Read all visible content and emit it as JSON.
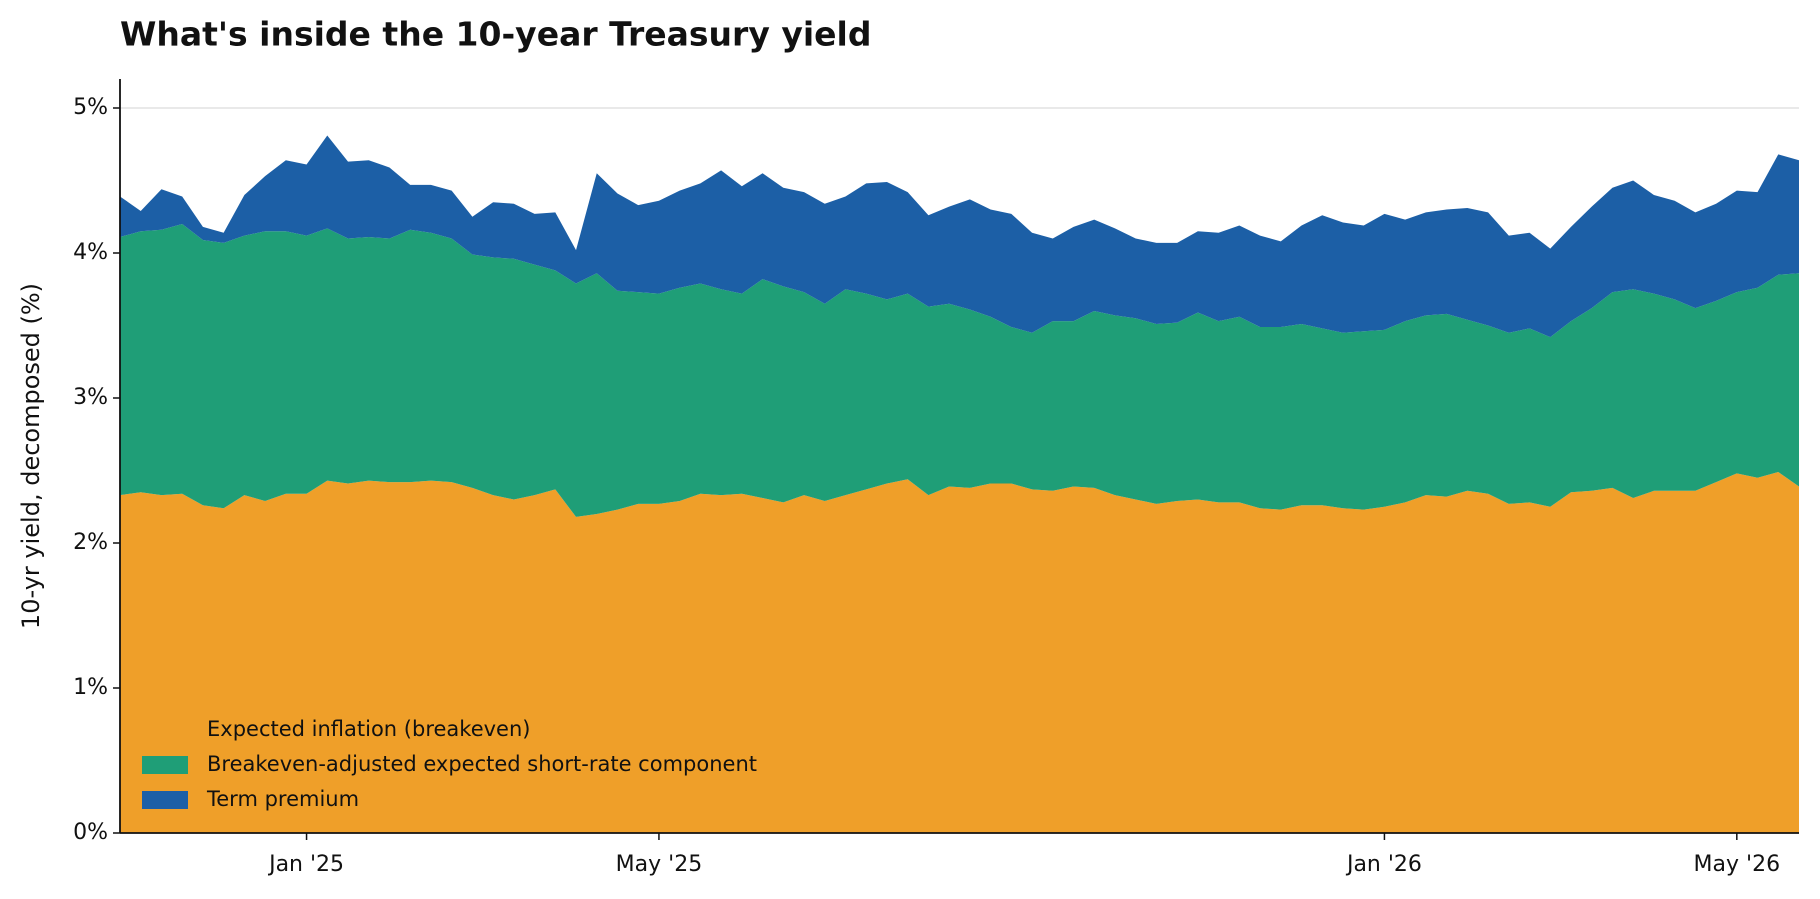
{
  "chart_data": {
    "type": "stacked_area",
    "title": "What's inside the 10-year Treasury yield",
    "y_label": "10-yr yield, decomposed (%)",
    "categories": [
      null,
      null,
      null,
      null,
      null,
      null,
      null,
      null,
      null,
      "Jan '25",
      null,
      null,
      null,
      null,
      null,
      null,
      null,
      null,
      null,
      null,
      null,
      null,
      null,
      null,
      null,
      null,
      "May '25",
      null,
      null,
      null,
      null,
      null,
      null,
      null,
      null,
      null,
      null,
      null,
      null,
      null,
      null,
      null,
      null,
      null,
      null,
      null,
      null,
      null,
      null,
      null,
      null,
      null,
      null,
      null,
      null,
      null,
      null,
      null,
      null,
      null,
      null,
      "Jan '26",
      null,
      null,
      null,
      null,
      null,
      null,
      null,
      null,
      null,
      null,
      null,
      null,
      null,
      null,
      null,
      null,
      "May '26",
      null,
      null,
      null
    ],
    "series": [
      {
        "name": "Expected inflation (breakeven)",
        "color": "#EF9F29",
        "values": [
          2.33,
          2.35,
          2.33,
          2.34,
          2.26,
          2.24,
          2.33,
          2.29,
          2.34,
          2.34,
          2.43,
          2.41,
          2.43,
          2.42,
          2.42,
          2.43,
          2.42,
          2.38,
          2.33,
          2.3,
          2.33,
          2.37,
          2.18,
          2.2,
          2.23,
          2.27,
          2.27,
          2.29,
          2.34,
          2.33,
          2.34,
          2.31,
          2.28,
          2.33,
          2.29,
          2.33,
          2.37,
          2.41,
          2.44,
          2.33,
          2.39,
          2.38,
          2.41,
          2.41,
          2.37,
          2.36,
          2.39,
          2.38,
          2.33,
          2.3,
          2.27,
          2.29,
          2.3,
          2.28,
          2.28,
          2.24,
          2.23,
          2.26,
          2.26,
          2.24,
          2.23,
          2.25,
          2.28,
          2.33,
          2.32,
          2.36,
          2.34,
          2.27,
          2.28,
          2.25,
          2.35,
          2.36,
          2.38,
          2.31,
          2.36,
          2.36,
          2.36,
          2.42,
          2.48,
          2.45,
          2.49,
          2.39
        ]
      },
      {
        "name": "Breakeven-adjusted expected short-rate component",
        "color": "#1F9E77",
        "values": [
          1.78,
          1.8,
          1.83,
          1.86,
          1.83,
          1.83,
          1.79,
          1.86,
          1.81,
          1.78,
          1.74,
          1.69,
          1.68,
          1.68,
          1.74,
          1.71,
          1.68,
          1.61,
          1.64,
          1.66,
          1.59,
          1.51,
          1.61,
          1.66,
          1.51,
          1.46,
          1.45,
          1.47,
          1.45,
          1.42,
          1.38,
          1.51,
          1.49,
          1.4,
          1.36,
          1.42,
          1.35,
          1.27,
          1.28,
          1.3,
          1.26,
          1.23,
          1.15,
          1.08,
          1.08,
          1.17,
          1.14,
          1.22,
          1.24,
          1.25,
          1.24,
          1.23,
          1.29,
          1.25,
          1.28,
          1.25,
          1.26,
          1.25,
          1.22,
          1.21,
          1.23,
          1.22,
          1.25,
          1.24,
          1.26,
          1.18,
          1.16,
          1.18,
          1.2,
          1.17,
          1.18,
          1.26,
          1.35,
          1.44,
          1.36,
          1.32,
          1.26,
          1.25,
          1.25,
          1.31,
          1.36,
          1.47
        ]
      },
      {
        "name": "Term premium",
        "color": "#1C5FA6",
        "values": [
          0.28,
          0.14,
          0.28,
          0.19,
          0.09,
          0.07,
          0.28,
          0.38,
          0.49,
          0.49,
          0.64,
          0.53,
          0.53,
          0.49,
          0.31,
          0.33,
          0.33,
          0.26,
          0.38,
          0.38,
          0.35,
          0.4,
          0.23,
          0.69,
          0.67,
          0.6,
          0.64,
          0.67,
          0.69,
          0.82,
          0.74,
          0.73,
          0.68,
          0.69,
          0.69,
          0.64,
          0.76,
          0.81,
          0.7,
          0.63,
          0.67,
          0.76,
          0.74,
          0.78,
          0.69,
          0.57,
          0.65,
          0.63,
          0.6,
          0.55,
          0.56,
          0.55,
          0.56,
          0.61,
          0.63,
          0.63,
          0.59,
          0.68,
          0.78,
          0.76,
          0.73,
          0.8,
          0.7,
          0.71,
          0.72,
          0.77,
          0.78,
          0.67,
          0.66,
          0.61,
          0.65,
          0.7,
          0.72,
          0.75,
          0.68,
          0.68,
          0.66,
          0.67,
          0.7,
          0.66,
          0.83,
          0.78
        ]
      }
    ],
    "ylim": [
      0,
      5.2
    ],
    "yticks": [
      {
        "value": 0,
        "label": "0%"
      },
      {
        "value": 1,
        "label": "1%"
      },
      {
        "value": 2,
        "label": "2%"
      },
      {
        "value": 3,
        "label": "3%"
      },
      {
        "value": 4,
        "label": "4%"
      },
      {
        "value": 5,
        "label": "5%"
      }
    ],
    "grid": true,
    "legend": "lower-left"
  }
}
